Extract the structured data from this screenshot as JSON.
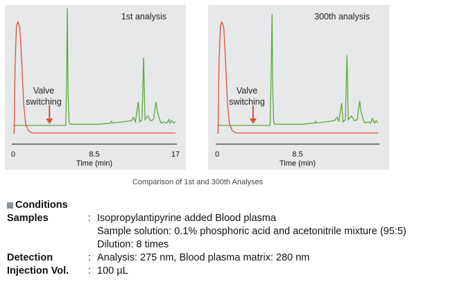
{
  "chart_data": [
    {
      "type": "line",
      "title": "1st analysis",
      "xlabel": "Time (min)",
      "xticks": [
        "0",
        "8.5",
        "17"
      ],
      "xlim": [
        0,
        17
      ],
      "annotation": {
        "text_line1": "Valve",
        "text_line2": "switching",
        "time": 3.8
      },
      "series": [
        {
          "name": "analysis",
          "color": "#5aa83c",
          "points": [
            [
              0,
              0
            ],
            [
              5.5,
              0
            ],
            [
              5.6,
              40
            ],
            [
              5.67,
              100
            ],
            [
              5.75,
              30
            ],
            [
              5.85,
              3
            ],
            [
              6,
              1
            ],
            [
              9,
              1
            ],
            [
              10.2,
              2
            ],
            [
              10.3,
              3.5
            ],
            [
              10.4,
              2
            ],
            [
              11.5,
              3
            ],
            [
              12.4,
              4
            ],
            [
              12.6,
              7
            ],
            [
              12.8,
              3
            ],
            [
              13.1,
              20
            ],
            [
              13.25,
              3
            ],
            [
              13.5,
              5
            ],
            [
              13.66,
              58
            ],
            [
              13.8,
              5
            ],
            [
              14.1,
              8
            ],
            [
              14.4,
              4
            ],
            [
              14.7,
              5
            ],
            [
              14.95,
              20
            ],
            [
              15.1,
              12
            ],
            [
              15.3,
              6
            ],
            [
              15.5,
              2
            ],
            [
              15.8,
              3
            ],
            [
              16.1,
              2
            ],
            [
              16.3,
              5
            ],
            [
              16.4,
              2
            ],
            [
              16.6,
              4
            ],
            [
              16.8,
              2
            ],
            [
              17,
              3
            ]
          ]
        },
        {
          "name": "blood plasma matrix",
          "color": "#d9503a",
          "points": [
            [
              0,
              0
            ],
            [
              0.1,
              0
            ],
            [
              0.2,
              60
            ],
            [
              0.35,
              92
            ],
            [
              0.5,
              95
            ],
            [
              0.7,
              90
            ],
            [
              0.9,
              60
            ],
            [
              1.1,
              25
            ],
            [
              1.3,
              8
            ],
            [
              1.6,
              2
            ],
            [
              2,
              0
            ],
            [
              17,
              0
            ]
          ]
        }
      ]
    },
    {
      "type": "line",
      "title": "300th analysis",
      "xlabel": "Time (min)",
      "xticks": [
        "0",
        "8.5"
      ],
      "xlim": [
        0,
        17
      ],
      "annotation": {
        "text_line1": "Valve",
        "text_line2": "switching",
        "time": 3.8
      },
      "series": [
        {
          "name": "analysis",
          "color": "#5aa83c",
          "points": [
            [
              0,
              0
            ],
            [
              5.6,
              0
            ],
            [
              5.7,
              40
            ],
            [
              5.8,
              95
            ],
            [
              5.88,
              30
            ],
            [
              5.98,
              3
            ],
            [
              6.1,
              1
            ],
            [
              9,
              1
            ],
            [
              10.3,
              2
            ],
            [
              10.4,
              3.5
            ],
            [
              10.5,
              2
            ],
            [
              11.5,
              3
            ],
            [
              12.4,
              4
            ],
            [
              12.7,
              7
            ],
            [
              12.85,
              3
            ],
            [
              13.15,
              19
            ],
            [
              13.3,
              3
            ],
            [
              13.55,
              5
            ],
            [
              13.72,
              60
            ],
            [
              13.85,
              5
            ],
            [
              14.2,
              8
            ],
            [
              14.5,
              4
            ],
            [
              14.8,
              5
            ],
            [
              15.05,
              21
            ],
            [
              15.2,
              12
            ],
            [
              15.4,
              6
            ],
            [
              15.6,
              2
            ],
            [
              16,
              3
            ],
            [
              16.2,
              2
            ],
            [
              16.4,
              6
            ],
            [
              16.6,
              2
            ],
            [
              16.8,
              4
            ],
            [
              17,
              2
            ]
          ]
        },
        {
          "name": "blood plasma matrix",
          "color": "#d9503a",
          "points": [
            [
              0,
              0
            ],
            [
              0.1,
              0
            ],
            [
              0.2,
              60
            ],
            [
              0.35,
              92
            ],
            [
              0.5,
              95
            ],
            [
              0.7,
              90
            ],
            [
              0.9,
              60
            ],
            [
              1.1,
              25
            ],
            [
              1.3,
              8
            ],
            [
              1.6,
              2
            ],
            [
              2,
              0
            ],
            [
              17,
              0
            ]
          ]
        }
      ]
    }
  ],
  "caption": "Comparison of 1st and 300th Analyses",
  "conditions": {
    "heading": "Conditions",
    "rows": [
      {
        "label": "Samples",
        "colon": ":",
        "lines": [
          "Isopropylantipyrine added Blood plasma",
          "Sample solution: 0.1% phosphoric acid and acetonitrile mixture (95:5)",
          "Dilution: 8 times"
        ]
      },
      {
        "label": "Detection",
        "colon": ":",
        "lines": [
          "Analysis: 275 nm, Blood plasma matrix: 280 nm"
        ]
      },
      {
        "label": "Injection Vol.",
        "colon": ":",
        "lines": [
          "100 µL"
        ]
      }
    ]
  }
}
